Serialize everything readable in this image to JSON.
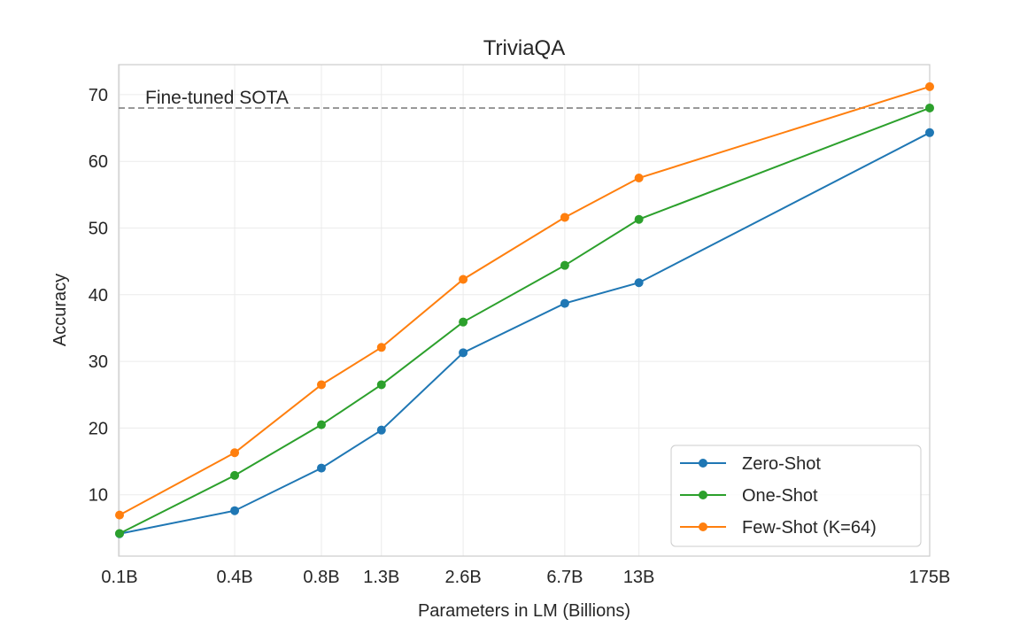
{
  "chart_data": {
    "type": "line",
    "title": "TriviaQA",
    "xlabel": "Parameters in LM (Billions)",
    "ylabel": "Accuracy",
    "x_scale": "log",
    "x": [
      0.125,
      0.35,
      0.76,
      1.3,
      2.7,
      6.7,
      13,
      175
    ],
    "x_tick_labels": [
      "0.1B",
      "0.4B",
      "0.8B",
      "1.3B",
      "2.6B",
      "6.7B",
      "13B",
      "175B"
    ],
    "y_ticks": [
      10,
      20,
      30,
      40,
      50,
      60,
      70
    ],
    "ylim": [
      0.8,
      74.5
    ],
    "grid": true,
    "legend_position": "lower-right",
    "series": [
      {
        "name": "Zero-Shot",
        "color": "#1f77b4",
        "values": [
          4.15,
          7.61,
          14.0,
          19.7,
          31.3,
          38.7,
          41.8,
          64.3
        ]
      },
      {
        "name": "One-Shot",
        "color": "#2ca02c",
        "values": [
          4.19,
          12.9,
          20.5,
          26.5,
          35.9,
          44.4,
          51.3,
          68.0
        ]
      },
      {
        "name": "Few-Shot (K=64)",
        "color": "#ff7f0e",
        "values": [
          6.96,
          16.3,
          26.5,
          32.1,
          42.3,
          51.6,
          57.5,
          71.2
        ]
      }
    ],
    "reference_line": {
      "label": "Fine-tuned SOTA",
      "value": 68.0,
      "color": "#999999",
      "style": "dashed"
    }
  }
}
